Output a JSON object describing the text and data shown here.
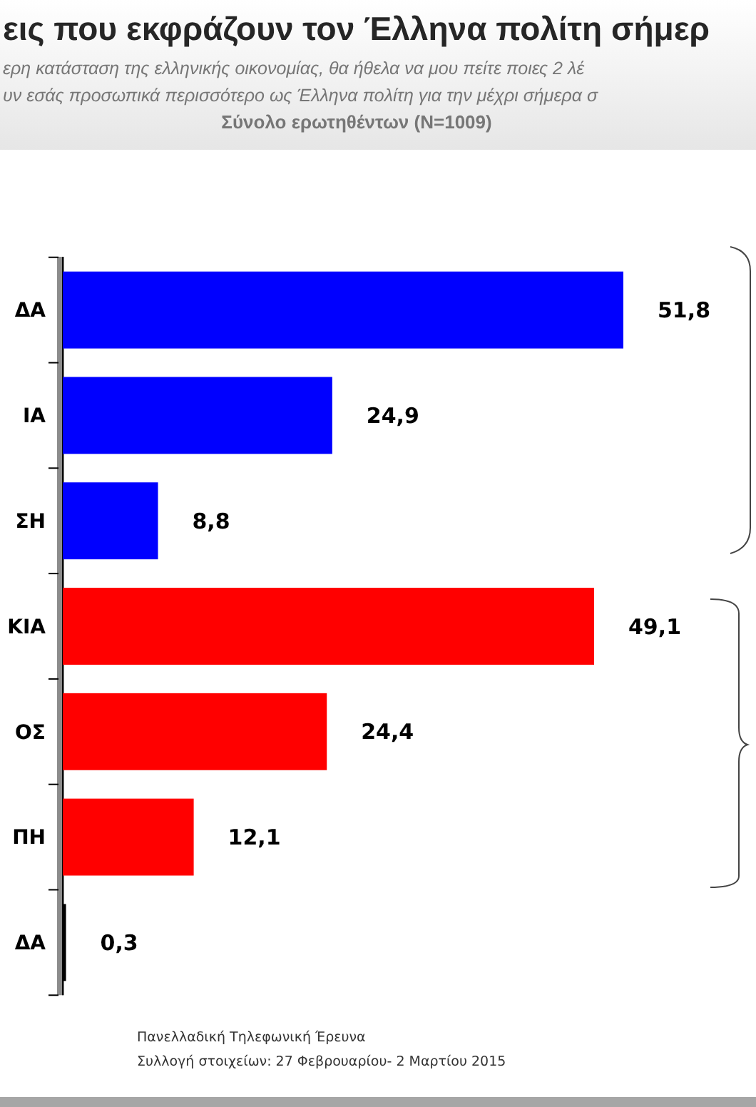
{
  "chart_data": {
    "type": "bar",
    "orientation": "horizontal",
    "title": "εις που εκφράζουν τον Έλληνα πολίτη σήμερ",
    "subtitle": "ερη κατάσταση της ελληνικής οικονομίας, θα ήθελα να μου πείτε ποιες 2 λέ\nυν εσάς προσωπικά περισσότερο ως Έλληνα πολίτη για την μέχρι σήμερα σ\nΣύνολο ερωτηθέντων (N=1009)",
    "categories": [
      "ΔΑ",
      "ΙΑ",
      "ΣΗ",
      "ΚΙΑ",
      "ΟΣ",
      "ΠΗ",
      "ΔΑ"
    ],
    "values": [
      51.8,
      24.9,
      8.8,
      49.1,
      24.4,
      12.1,
      0.3
    ],
    "value_labels": [
      "51,8",
      "24,9",
      "8,8",
      "49,1",
      "24,4",
      "12,1",
      "0,3"
    ],
    "colors": [
      "#0000ff",
      "#0000ff",
      "#0000ff",
      "#ff0000",
      "#ff0000",
      "#ff0000",
      "#000000"
    ],
    "annotations": [
      "Πανελλαδική  Τηλεφωνική Έρευνα",
      "Συλλογή στοιχείων: 27 Φεβρουαρίου- 2 Μαρτίου  2015"
    ]
  }
}
